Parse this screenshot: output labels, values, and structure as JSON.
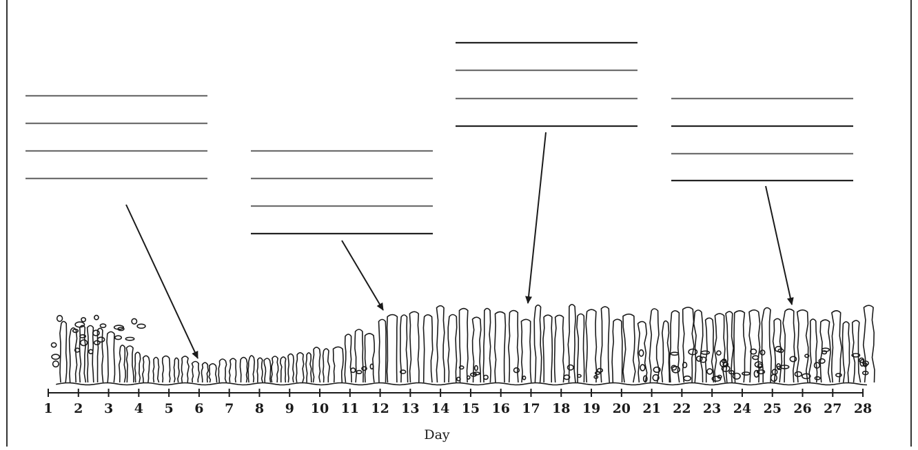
{
  "diagram": {
    "axis": {
      "ticks": [
        "1",
        "2",
        "3",
        "4",
        "5",
        "6",
        "7",
        "8",
        "9",
        "10",
        "11",
        "12",
        "13",
        "14",
        "15",
        "16",
        "17",
        "18",
        "19",
        "20",
        "21",
        "22",
        "23",
        "24",
        "25",
        "26",
        "27",
        "28"
      ],
      "title": "Day"
    },
    "label_boxes": [
      {
        "lines": 4,
        "points_to_day": 6
      },
      {
        "lines": 4,
        "points_to_day": 12
      },
      {
        "lines": 4,
        "points_to_day": 17
      },
      {
        "lines": 4,
        "points_to_day": 25.5
      }
    ],
    "colors": {
      "ink": "#1a1a1a",
      "frame": "#333333",
      "rule_dark": "#222222",
      "rule_light": "#6e6e6e"
    }
  }
}
